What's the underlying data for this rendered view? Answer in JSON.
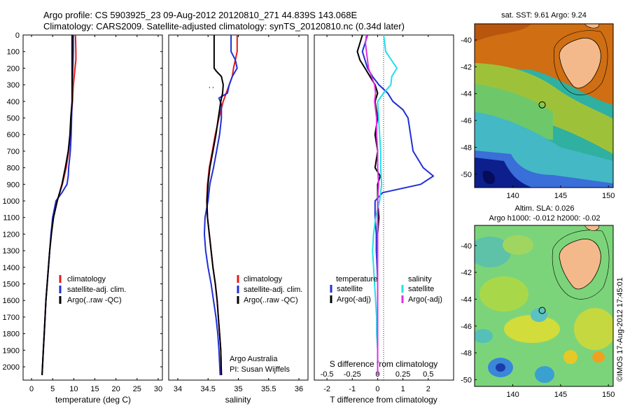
{
  "header": {
    "line1": "Argo profile: CS 5903925_23 09-Aug-2012 20120810_271 44.839S 143.068E",
    "line2": "Climatology: CARS2009. Satellite-adjusted climatology: synTS_20120810.nc (0.34d later)"
  },
  "stamp": "©IMOS 17-Aug-2012 17:45:01",
  "depth_ticks": [
    "0",
    "100",
    "200",
    "300",
    "400",
    "500",
    "600",
    "700",
    "800",
    "900",
    "1000",
    "1100",
    "1200",
    "1300",
    "1400",
    "1500",
    "1600",
    "1700",
    "1800",
    "1900",
    "2000"
  ],
  "colors": {
    "climatology": "#e41a1c",
    "satellite": "#1f2fd6",
    "argo": "#000000",
    "sat_sal": "#22e0e8",
    "argo_sal_adj": "#e030e0"
  },
  "chart_data": [
    {
      "type": "line",
      "id": "temperature",
      "xlabel": "temperature (deg C)",
      "ylabel": "",
      "xlim": [
        -2,
        31
      ],
      "ylim": [
        2080,
        0
      ],
      "xticks": [
        "0",
        "5",
        "10",
        "15",
        "20",
        "25",
        "30"
      ],
      "legend": [
        "climatology",
        "satellite-adj. clim.",
        "Argo(..raw -QC)"
      ],
      "series": [
        {
          "name": "climatology",
          "color": "#e41a1c",
          "depth": [
            0,
            100,
            150,
            200,
            300,
            400,
            500,
            600,
            700,
            800,
            900,
            1000,
            1100,
            1200,
            1300,
            1400,
            1500,
            1600,
            1700,
            1800,
            1900,
            2050
          ],
          "x": [
            10.4,
            10.5,
            10.5,
            10.3,
            9.9,
            9.7,
            9.4,
            9.2,
            8.8,
            8.2,
            7.3,
            6.1,
            5.2,
            4.7,
            4.3,
            4.0,
            3.7,
            3.4,
            3.2,
            3.0,
            2.8,
            2.5
          ]
        },
        {
          "name": "satellite-adj. clim.",
          "color": "#1f2fd6",
          "depth": [
            0,
            100,
            200,
            300,
            400,
            500,
            600,
            700,
            800,
            850,
            900,
            950,
            1000,
            1100,
            1200,
            1300,
            1400,
            1500,
            1600,
            1700,
            1800,
            1900,
            2050
          ],
          "x": [
            9.9,
            9.9,
            9.8,
            9.6,
            9.6,
            9.5,
            9.4,
            9.2,
            8.8,
            8.7,
            8.4,
            7.2,
            5.8,
            5.0,
            4.6,
            4.3,
            4.0,
            3.7,
            3.4,
            3.2,
            3.0,
            2.8,
            2.5
          ]
        },
        {
          "name": "Argo(..raw -QC)",
          "color": "#000000",
          "depth": [
            0,
            100,
            200,
            300,
            400,
            500,
            600,
            700,
            800,
            900,
            1000,
            1100,
            1200,
            1300,
            1400,
            1500,
            1600,
            1700,
            1800,
            1900,
            2050
          ],
          "x": [
            9.6,
            9.6,
            9.6,
            9.6,
            9.6,
            9.3,
            9.1,
            8.7,
            8.0,
            7.2,
            6.1,
            5.2,
            4.7,
            4.3,
            4.0,
            3.7,
            3.4,
            3.2,
            3.0,
            2.8,
            2.5
          ]
        }
      ]
    },
    {
      "type": "line",
      "id": "salinity",
      "xlabel": "salinity",
      "ylabel": "",
      "xlim": [
        33.85,
        36.15
      ],
      "ylim": [
        2080,
        0
      ],
      "xticks": [
        "34",
        "34.5",
        "35",
        "35.5",
        "36"
      ],
      "legend": [
        "climatology",
        "satellite-adj. clim.",
        "Argo(..raw -QC)"
      ],
      "annotation": [
        "Argo Australia",
        "PI: Susan Wijffels"
      ],
      "series": [
        {
          "name": "climatology",
          "color": "#e41a1c",
          "depth": [
            0,
            100,
            150,
            200,
            250,
            300,
            350,
            400,
            500,
            600,
            700,
            800,
            900,
            1000,
            1100,
            1200,
            1300,
            1400,
            1500,
            1600,
            1700,
            1800,
            1900,
            2050
          ],
          "x": [
            34.98,
            34.98,
            34.95,
            34.92,
            34.9,
            34.85,
            34.8,
            34.75,
            34.68,
            34.62,
            34.57,
            34.52,
            34.49,
            34.48,
            34.49,
            34.52,
            34.55,
            34.58,
            34.62,
            34.65,
            34.67,
            34.69,
            34.71,
            34.72
          ]
        },
        {
          "name": "satellite-adj. clim.",
          "color": "#1f2fd6",
          "depth": [
            0,
            100,
            150,
            200,
            250,
            300,
            350,
            380,
            420,
            500,
            600,
            700,
            800,
            900,
            1000,
            1100,
            1200,
            1300,
            1400,
            1500,
            1600,
            1700,
            1800,
            1900,
            2050
          ],
          "x": [
            34.88,
            34.88,
            34.95,
            34.98,
            34.9,
            34.85,
            34.82,
            34.68,
            34.72,
            34.72,
            34.69,
            34.64,
            34.59,
            34.53,
            34.5,
            34.45,
            34.44,
            34.46,
            34.5,
            34.55,
            34.59,
            34.63,
            34.66,
            34.68,
            34.7
          ]
        },
        {
          "name": "Argo(..raw -QC)",
          "color": "#000000",
          "depth": [
            0,
            100,
            200,
            220,
            250,
            300,
            350,
            400,
            500,
            600,
            700,
            800,
            900,
            1000,
            1100,
            1200,
            1300,
            1400,
            1500,
            1600,
            1700,
            1800,
            1900,
            2050
          ],
          "x": [
            34.6,
            34.6,
            34.6,
            34.64,
            34.72,
            34.75,
            34.74,
            34.71,
            34.67,
            34.63,
            34.58,
            34.53,
            34.5,
            34.48,
            34.49,
            34.52,
            34.55,
            34.58,
            34.62,
            34.65,
            34.67,
            34.69,
            34.71,
            34.72
          ]
        }
      ]
    },
    {
      "type": "line",
      "id": "differences",
      "xlabel": "T difference from climatology",
      "xlabel_top": "S difference from climatology",
      "ylabel": "",
      "xlim": [
        -2.5,
        3.0
      ],
      "xlim_top": [
        -0.625,
        0.75
      ],
      "ylim": [
        2080,
        0
      ],
      "xticks": [
        "-2",
        "-1",
        "0",
        "1",
        "2"
      ],
      "xticks_top": [
        "-0.5",
        "-0.25",
        "0",
        "0.25",
        "0.5"
      ],
      "legend": [
        "temperature",
        "satellite",
        "Argo(-adj)",
        "salinity",
        "satellite",
        "Argo(-adj)"
      ],
      "series": [
        {
          "name": "satellite",
          "group": "temperature",
          "color": "#1f2fd6",
          "depth": [
            0,
            50,
            100,
            150,
            200,
            250,
            300,
            350,
            400,
            450,
            500,
            600,
            700,
            800,
            850,
            900,
            950,
            1000,
            1100,
            1200,
            1300,
            1400,
            1500,
            1600,
            1700,
            1800,
            1900,
            2050
          ],
          "x": [
            -0.4,
            -0.5,
            -0.6,
            -0.5,
            -0.4,
            -0.2,
            0.05,
            0.4,
            0.6,
            1.0,
            1.2,
            1.3,
            1.4,
            1.8,
            2.2,
            1.7,
            0.2,
            -0.1,
            -0.1,
            -0.05,
            -0.05,
            -0.02,
            0.0,
            0.0,
            0.0,
            0.0,
            0.0,
            0.0
          ]
        },
        {
          "name": "Argo(-adj)",
          "group": "temperature",
          "color": "#000000",
          "depth": [
            0,
            50,
            100,
            150,
            200,
            250,
            300,
            350,
            400,
            500,
            600,
            700,
            800,
            850,
            900,
            950,
            1000,
            1100,
            1200,
            1300,
            1400,
            1500,
            1600,
            1700,
            1800,
            1900,
            2050
          ],
          "x": [
            -0.6,
            -0.7,
            -0.8,
            -0.7,
            -0.5,
            -0.3,
            -0.1,
            0.0,
            -0.1,
            0.0,
            -0.1,
            0.0,
            -0.1,
            0.1,
            0.0,
            0.0,
            0.0,
            0.05,
            0.0,
            0.0,
            0.0,
            0.0,
            0.0,
            0.0,
            0.0,
            0.0,
            0.0
          ]
        },
        {
          "name": "satellite",
          "group": "salinity",
          "color": "#22e0e8",
          "depth": [
            0,
            100,
            200,
            250,
            300,
            350,
            400,
            500,
            600,
            700,
            800,
            900,
            1000,
            1100,
            1200,
            1300,
            1400,
            1500,
            1600,
            1700,
            1800,
            1900,
            2050
          ],
          "x": [
            0.06,
            0.08,
            0.19,
            0.14,
            0.13,
            0.06,
            0.0,
            0.01,
            0.02,
            0.03,
            0.03,
            0.04,
            0.02,
            -0.02,
            -0.04,
            -0.05,
            -0.04,
            -0.03,
            -0.02,
            -0.01,
            -0.01,
            0.0,
            0.0
          ]
        },
        {
          "name": "Argo(-adj)",
          "group": "salinity",
          "color": "#e030e0",
          "depth": [
            0,
            50,
            100,
            150,
            200,
            250,
            300,
            350,
            400,
            500,
            600,
            700,
            800,
            900,
            1000,
            1100,
            1200,
            1300,
            1400,
            1500,
            1600,
            1700,
            1800,
            1900,
            2050
          ],
          "x": [
            -0.11,
            -0.12,
            -0.11,
            -0.1,
            -0.09,
            -0.06,
            -0.03,
            -0.02,
            -0.03,
            -0.01,
            -0.01,
            0.0,
            0.0,
            0.01,
            0.0,
            0.0,
            0.0,
            0.0,
            0.0,
            0.0,
            0.0,
            0.0,
            0.0,
            0.0,
            0.0
          ]
        }
      ]
    },
    {
      "type": "heatmap",
      "id": "sst_map",
      "title": "sat. SST: 9.61  Argo: 9.24",
      "xticks": [
        "140",
        "145",
        "150"
      ],
      "yticks": [
        "-40",
        "-42",
        "-44",
        "-46",
        "-48",
        "-50"
      ],
      "xlim": [
        136,
        150.5
      ],
      "ylim": [
        -51,
        -38.8
      ],
      "marker": {
        "lon": 143.068,
        "lat": -44.839
      }
    },
    {
      "type": "heatmap",
      "id": "sla_map",
      "title": "Altim. SLA: 0.026",
      "subtitle": "Argo h1000: -0.012  h2000: -0.02",
      "xticks": [
        "140",
        "145",
        "150"
      ],
      "yticks": [
        "-40",
        "-42",
        "-44",
        "-46",
        "-48",
        "-50"
      ],
      "xlim": [
        136,
        150.5
      ],
      "ylim": [
        -50.5,
        -38.5
      ],
      "marker": {
        "lon": 143.068,
        "lat": -44.839
      }
    }
  ]
}
